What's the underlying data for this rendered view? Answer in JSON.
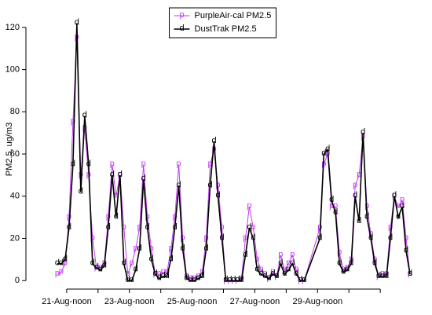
{
  "chart_data": {
    "type": "line",
    "ylabel": "PM2.5, ug/m3",
    "x": [
      21.2,
      21.325,
      21.45,
      21.575,
      21.7,
      21.825,
      21.95,
      22.075,
      22.2,
      22.325,
      22.45,
      22.575,
      22.7,
      22.825,
      22.95,
      23.075,
      23.2,
      23.325,
      23.45,
      23.575,
      23.7,
      23.825,
      23.95,
      24.075,
      24.2,
      24.325,
      24.45,
      24.575,
      24.7,
      24.825,
      24.95,
      25.075,
      25.2,
      25.325,
      25.45,
      25.575,
      25.7,
      25.825,
      25.95,
      26.075,
      26.2,
      26.325,
      26.45,
      26.575,
      26.7,
      26.825,
      26.95,
      27.075,
      27.2,
      27.325,
      27.45,
      27.575,
      27.7,
      27.825,
      27.95,
      28.075,
      28.2,
      28.325,
      28.45,
      28.575,
      28.7,
      28.825,
      28.95,
      29.075,
      29.575,
      29.7,
      29.825,
      29.95,
      30.075,
      30.2,
      30.325,
      30.45,
      30.575,
      30.7,
      30.825,
      30.95,
      31.075,
      31.2,
      31.325,
      31.45,
      31.575,
      31.7,
      31.825,
      31.95,
      32.075,
      32.2,
      32.325,
      32.45
    ],
    "series": [
      {
        "name": "PurpleAir-cal PM2.5",
        "marker": "p",
        "color": "#c03cf0",
        "values": [
          3,
          4,
          8,
          30,
          75,
          115,
          50,
          72,
          50,
          20,
          6,
          6,
          8,
          30,
          55,
          40,
          50,
          25,
          3,
          8,
          15,
          25,
          55,
          30,
          15,
          3,
          3,
          4,
          4,
          15,
          30,
          55,
          20,
          2,
          1,
          1,
          2,
          4,
          20,
          55,
          62,
          45,
          25,
          0,
          0,
          0,
          0,
          1,
          20,
          35,
          25,
          10,
          5,
          3,
          1,
          4,
          2,
          12,
          5,
          8,
          12,
          5,
          0,
          0,
          25,
          55,
          60,
          35,
          35,
          13,
          5,
          6,
          10,
          45,
          50,
          68,
          35,
          22,
          10,
          2,
          3,
          3,
          25,
          40,
          35,
          38,
          20,
          3
        ]
      },
      {
        "name": "DustTrak PM2.5",
        "marker": "d",
        "color": "#000000",
        "values": [
          8,
          8,
          10,
          25,
          55,
          122,
          42,
          78,
          55,
          8,
          6,
          5,
          7,
          25,
          50,
          30,
          50,
          8,
          0,
          0,
          5,
          15,
          48,
          25,
          10,
          3,
          1,
          2,
          2,
          10,
          25,
          45,
          15,
          1,
          0,
          0,
          1,
          2,
          15,
          45,
          66,
          40,
          20,
          0,
          0,
          0,
          0,
          0,
          12,
          25,
          20,
          5,
          3,
          2,
          1,
          3,
          2,
          8,
          3,
          5,
          8,
          3,
          0,
          0,
          20,
          60,
          62,
          38,
          32,
          8,
          4,
          5,
          8,
          40,
          28,
          70,
          30,
          20,
          8,
          2,
          2,
          2,
          20,
          40,
          30,
          35,
          14,
          3
        ]
      }
    ],
    "xlim": [
      20.2,
      32.9
    ],
    "ylim": [
      -4,
      130
    ],
    "xticks": [
      {
        "value": 21.5,
        "label": "21-Aug-noon"
      },
      {
        "value": 22.5,
        "label": null
      },
      {
        "value": 23.5,
        "label": "23-Aug-noon"
      },
      {
        "value": 24.5,
        "label": null
      },
      {
        "value": 25.5,
        "label": "25-Aug-noon"
      },
      {
        "value": 26.5,
        "label": null
      },
      {
        "value": 27.5,
        "label": "27-Aug-noon"
      },
      {
        "value": 28.5,
        "label": null
      },
      {
        "value": 29.5,
        "label": "29-Aug-noon"
      },
      {
        "value": 30.5,
        "label": null
      },
      {
        "value": 31.5,
        "label": null
      }
    ],
    "yticks": [
      0,
      20,
      40,
      60,
      80,
      100,
      120
    ],
    "legend": "top"
  }
}
